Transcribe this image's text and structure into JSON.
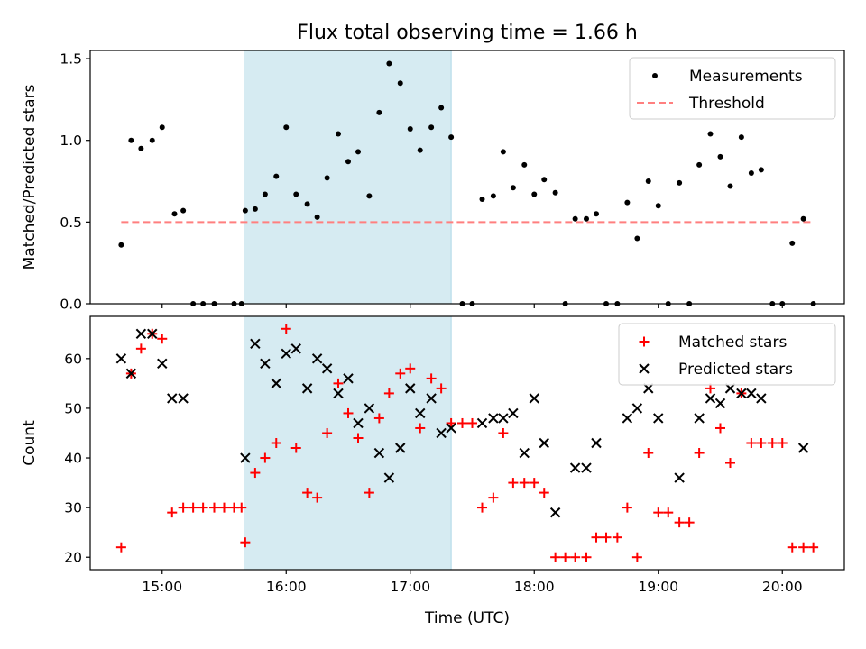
{
  "chart_data": {
    "type": "scatter",
    "title": "Flux total observing time = 1.66 h",
    "xlabel": "Time (UTC)",
    "x_unit": "hours (UTC, decimal)",
    "xlim": [
      14.42,
      20.5
    ],
    "x_ticks": [
      15,
      16,
      17,
      18,
      19,
      20
    ],
    "x_tick_labels": [
      "15:00",
      "16:00",
      "17:00",
      "18:00",
      "19:00",
      "20:00"
    ],
    "shaded_span": [
      15.66,
      17.33
    ],
    "panels": [
      {
        "id": "top",
        "ylabel": "Matched/Predicted stars",
        "ylim": [
          0,
          1.55
        ],
        "y_ticks": [
          0.0,
          0.5,
          1.0,
          1.5
        ],
        "y_tick_labels": [
          "0.0",
          "0.5",
          "1.0",
          "1.5"
        ],
        "legend": [
          "Measurements",
          "Threshold"
        ],
        "threshold": {
          "name": "Threshold",
          "value": 0.5,
          "x_range": [
            14.67,
            20.25
          ],
          "color": "#ff7f7f"
        },
        "series": [
          {
            "name": "Measurements",
            "marker": "dot",
            "color": "#000000",
            "points": [
              [
                14.67,
                0.36
              ],
              [
                14.75,
                1.0
              ],
              [
                14.83,
                0.95
              ],
              [
                14.92,
                1.0
              ],
              [
                15.0,
                1.08
              ],
              [
                15.1,
                0.55
              ],
              [
                15.17,
                0.57
              ],
              [
                15.25,
                0.0
              ],
              [
                15.33,
                0.0
              ],
              [
                15.42,
                0.0
              ],
              [
                15.58,
                0.0
              ],
              [
                15.64,
                0.0
              ],
              [
                15.67,
                0.57
              ],
              [
                15.75,
                0.58
              ],
              [
                15.83,
                0.67
              ],
              [
                15.92,
                0.78
              ],
              [
                16.0,
                1.08
              ],
              [
                16.08,
                0.67
              ],
              [
                16.17,
                0.61
              ],
              [
                16.25,
                0.53
              ],
              [
                16.33,
                0.77
              ],
              [
                16.42,
                1.04
              ],
              [
                16.5,
                0.87
              ],
              [
                16.58,
                0.93
              ],
              [
                16.67,
                0.66
              ],
              [
                16.75,
                1.17
              ],
              [
                16.83,
                1.47
              ],
              [
                16.92,
                1.35
              ],
              [
                17.0,
                1.07
              ],
              [
                17.08,
                0.94
              ],
              [
                17.17,
                1.08
              ],
              [
                17.25,
                1.2
              ],
              [
                17.33,
                1.02
              ],
              [
                17.42,
                0.0
              ],
              [
                17.5,
                0.0
              ],
              [
                17.58,
                0.64
              ],
              [
                17.67,
                0.66
              ],
              [
                17.75,
                0.93
              ],
              [
                17.83,
                0.71
              ],
              [
                17.92,
                0.85
              ],
              [
                18.0,
                0.67
              ],
              [
                18.08,
                0.76
              ],
              [
                18.17,
                0.68
              ],
              [
                18.25,
                0.0
              ],
              [
                18.33,
                0.52
              ],
              [
                18.42,
                0.52
              ],
              [
                18.5,
                0.55
              ],
              [
                18.58,
                0.0
              ],
              [
                18.67,
                0.0
              ],
              [
                18.75,
                0.62
              ],
              [
                18.83,
                0.4
              ],
              [
                18.92,
                0.75
              ],
              [
                19.0,
                0.6
              ],
              [
                19.08,
                0.0
              ],
              [
                19.17,
                0.74
              ],
              [
                19.25,
                0.0
              ],
              [
                19.33,
                0.85
              ],
              [
                19.42,
                1.04
              ],
              [
                19.5,
                0.9
              ],
              [
                19.58,
                0.72
              ],
              [
                19.67,
                1.02
              ],
              [
                19.75,
                0.8
              ],
              [
                19.83,
                0.82
              ],
              [
                19.92,
                0.0
              ],
              [
                20.0,
                0.0
              ],
              [
                20.08,
                0.37
              ],
              [
                20.17,
                0.52
              ],
              [
                20.25,
                0.0
              ]
            ]
          }
        ]
      },
      {
        "id": "bottom",
        "ylabel": "Count",
        "ylim": [
          17.5,
          68.5
        ],
        "y_ticks": [
          20,
          30,
          40,
          50,
          60
        ],
        "y_tick_labels": [
          "20",
          "30",
          "40",
          "50",
          "60"
        ],
        "legend": [
          "Matched stars",
          "Predicted stars"
        ],
        "series": [
          {
            "name": "Matched stars",
            "marker": "plus",
            "color": "#ff0000",
            "points": [
              [
                14.67,
                22
              ],
              [
                14.75,
                57
              ],
              [
                14.83,
                62
              ],
              [
                14.92,
                65
              ],
              [
                15.0,
                64
              ],
              [
                15.08,
                29
              ],
              [
                15.17,
                30
              ],
              [
                15.25,
                30
              ],
              [
                15.33,
                30
              ],
              [
                15.42,
                30
              ],
              [
                15.5,
                30
              ],
              [
                15.58,
                30
              ],
              [
                15.64,
                30
              ],
              [
                15.67,
                23
              ],
              [
                15.75,
                37
              ],
              [
                15.83,
                40
              ],
              [
                15.92,
                43
              ],
              [
                16.0,
                66
              ],
              [
                16.08,
                42
              ],
              [
                16.17,
                33
              ],
              [
                16.25,
                32
              ],
              [
                16.33,
                45
              ],
              [
                16.42,
                55
              ],
              [
                16.5,
                49
              ],
              [
                16.58,
                44
              ],
              [
                16.67,
                33
              ],
              [
                16.75,
                48
              ],
              [
                16.83,
                53
              ],
              [
                16.92,
                57
              ],
              [
                17.0,
                58
              ],
              [
                17.08,
                46
              ],
              [
                17.17,
                56
              ],
              [
                17.25,
                54
              ],
              [
                17.33,
                47
              ],
              [
                17.42,
                47
              ],
              [
                17.5,
                47
              ],
              [
                17.58,
                30
              ],
              [
                17.67,
                32
              ],
              [
                17.75,
                45
              ],
              [
                17.83,
                35
              ],
              [
                17.92,
                35
              ],
              [
                18.0,
                35
              ],
              [
                18.08,
                33
              ],
              [
                18.17,
                20
              ],
              [
                18.25,
                20
              ],
              [
                18.33,
                20
              ],
              [
                18.42,
                20
              ],
              [
                18.5,
                24
              ],
              [
                18.58,
                24
              ],
              [
                18.67,
                24
              ],
              [
                18.75,
                30
              ],
              [
                18.83,
                20
              ],
              [
                18.92,
                41
              ],
              [
                19.0,
                29
              ],
              [
                19.08,
                29
              ],
              [
                19.17,
                27
              ],
              [
                19.25,
                27
              ],
              [
                19.33,
                41
              ],
              [
                19.42,
                54
              ],
              [
                19.5,
                46
              ],
              [
                19.58,
                39
              ],
              [
                19.67,
                53
              ],
              [
                19.75,
                43
              ],
              [
                19.83,
                43
              ],
              [
                19.92,
                43
              ],
              [
                20.0,
                43
              ],
              [
                20.08,
                22
              ],
              [
                20.17,
                22
              ],
              [
                20.25,
                22
              ]
            ]
          },
          {
            "name": "Predicted stars",
            "marker": "x",
            "color": "#000000",
            "points": [
              [
                14.67,
                60
              ],
              [
                14.75,
                57
              ],
              [
                14.83,
                65
              ],
              [
                14.92,
                65
              ],
              [
                15.0,
                59
              ],
              [
                15.08,
                52
              ],
              [
                15.17,
                52
              ],
              [
                15.67,
                40
              ],
              [
                15.75,
                63
              ],
              [
                15.83,
                59
              ],
              [
                15.92,
                55
              ],
              [
                16.0,
                61
              ],
              [
                16.08,
                62
              ],
              [
                16.17,
                54
              ],
              [
                16.25,
                60
              ],
              [
                16.33,
                58
              ],
              [
                16.42,
                53
              ],
              [
                16.5,
                56
              ],
              [
                16.58,
                47
              ],
              [
                16.67,
                50
              ],
              [
                16.75,
                41
              ],
              [
                16.83,
                36
              ],
              [
                16.92,
                42
              ],
              [
                17.0,
                54
              ],
              [
                17.08,
                49
              ],
              [
                17.17,
                52
              ],
              [
                17.25,
                45
              ],
              [
                17.33,
                46
              ],
              [
                17.58,
                47
              ],
              [
                17.67,
                48
              ],
              [
                17.75,
                48
              ],
              [
                17.83,
                49
              ],
              [
                17.92,
                41
              ],
              [
                18.0,
                52
              ],
              [
                18.08,
                43
              ],
              [
                18.17,
                29
              ],
              [
                18.33,
                38
              ],
              [
                18.42,
                38
              ],
              [
                18.5,
                43
              ],
              [
                18.75,
                48
              ],
              [
                18.83,
                50
              ],
              [
                18.92,
                54
              ],
              [
                19.0,
                48
              ],
              [
                19.17,
                36
              ],
              [
                19.33,
                48
              ],
              [
                19.42,
                52
              ],
              [
                19.5,
                51
              ],
              [
                19.58,
                54
              ],
              [
                19.67,
                53
              ],
              [
                19.75,
                53
              ],
              [
                19.83,
                52
              ],
              [
                20.17,
                42
              ]
            ]
          }
        ]
      }
    ]
  }
}
